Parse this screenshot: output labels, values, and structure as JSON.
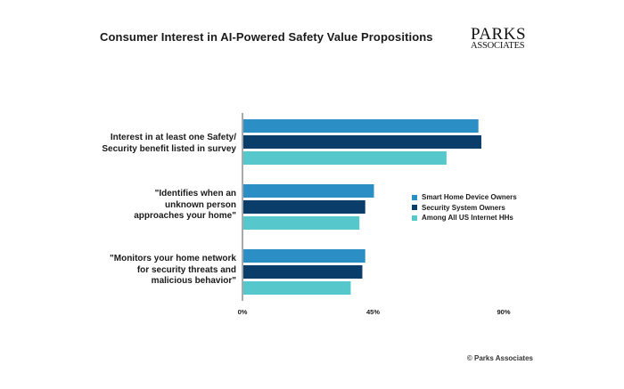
{
  "title": "Consumer Interest in AI-Powered Safety Value Propositions",
  "logo": {
    "line1": "PARKS",
    "line2": "ASSOCIATES"
  },
  "copyright": "© Parks Associates",
  "colors": {
    "series1": "#2b8fc6",
    "series2": "#0b3d6a",
    "series3": "#56c8cc",
    "axis": "#555555"
  },
  "chart_data": {
    "type": "bar",
    "orientation": "horizontal",
    "categories": [
      [
        "Interest in at least one Safety/",
        "Security benefit listed in survey"
      ],
      [
        "\"Identifies when an",
        "unknown person",
        "approaches your home\""
      ],
      [
        "\"Monitors your home network",
        "for security threats and",
        "malicious behavior\""
      ]
    ],
    "series": [
      {
        "name": "Smart Home Device Owners",
        "values": [
          81,
          45,
          42
        ]
      },
      {
        "name": "Security System Owners",
        "values": [
          82,
          42,
          41
        ]
      },
      {
        "name": "Among All US Internet HHs",
        "values": [
          70,
          40,
          37
        ]
      }
    ],
    "xticks": [
      "0%",
      "45%",
      "90%"
    ],
    "xlim": [
      0,
      90
    ],
    "legend": "right",
    "grid": false
  }
}
